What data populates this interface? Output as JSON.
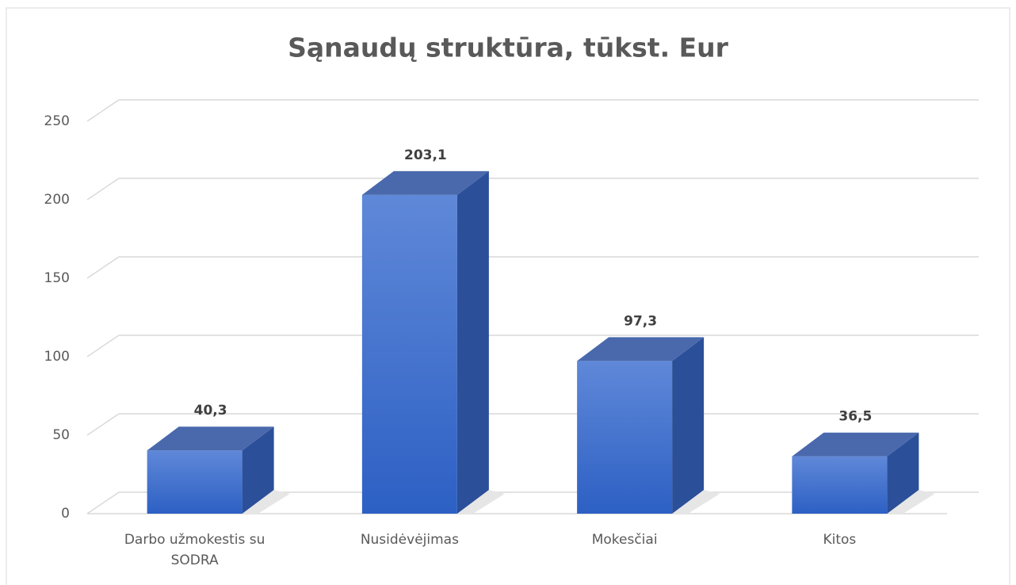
{
  "chart_data": {
    "type": "bar3d",
    "title": "Sąnaudų struktūra, tūkst. Eur",
    "categories": [
      "Darbo užmokestis su SODRA",
      "Nusidėvėjimas",
      "Mokesčiai",
      "Kitos"
    ],
    "values": [
      40.3,
      203.1,
      97.3,
      36.5
    ],
    "value_labels": [
      "40,3",
      "203,1",
      "97,3",
      "36,5"
    ],
    "color": "#4472c4",
    "ylim": [
      0,
      250
    ],
    "yticks": [
      0,
      50,
      100,
      150,
      200,
      250
    ],
    "grid": true
  }
}
